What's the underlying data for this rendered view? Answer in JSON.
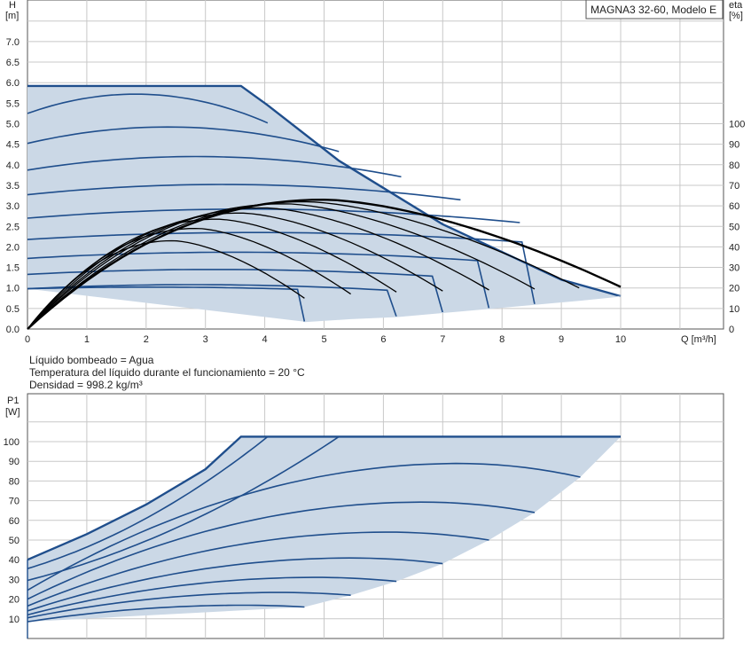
{
  "chart_title": "MAGNA3 32-60, Modelo E",
  "colors": {
    "curve": "#1f4e8c",
    "fill": "#cbd8e6",
    "eff": "#000000",
    "grid": "#c8c8c8"
  },
  "top": {
    "ylabel_line1": "H",
    "ylabel_line2": "[m]",
    "y2label_line1": "eta",
    "y2label_line2": "[%]",
    "xlabel": "Q [m³/h]",
    "x_ticks": [
      "0",
      "1",
      "2",
      "3",
      "4",
      "5",
      "6",
      "7",
      "8",
      "9",
      "10"
    ],
    "y_ticks": [
      "0.0",
      "0.5",
      "1.0",
      "1.5",
      "2.0",
      "2.5",
      "3.0",
      "3.5",
      "4.0",
      "4.5",
      "5.0",
      "5.5",
      "6.0",
      "6.5",
      "7.0"
    ],
    "y2_ticks": [
      "0",
      "10",
      "20",
      "30",
      "40",
      "50",
      "60",
      "70",
      "80",
      "90",
      "100"
    ]
  },
  "notes": {
    "line1": "Líquido bombeado = Agua",
    "line2": "Temperatura del líquido durante el funcionamiento = 20 °C",
    "line3": "Densidad = 998.2 kg/m³"
  },
  "bottom": {
    "ylabel_line1": "P1",
    "ylabel_line2": "[W]",
    "y_ticks": [
      "10",
      "20",
      "30",
      "40",
      "50",
      "60",
      "70",
      "80",
      "90",
      "100"
    ]
  },
  "chart_data": [
    {
      "type": "line",
      "title": "MAGNA3 32-60, Modelo E",
      "xlabel": "Q [m³/h]",
      "ylabel": "H [m]",
      "y2label": "eta [%]",
      "xlim": [
        0,
        11
      ],
      "ylim": [
        0,
        7.5
      ],
      "y2lim": [
        0,
        110
      ],
      "grid": true,
      "envelope": {
        "x": [
          0,
          3.6,
          4.05,
          5.25,
          7.0,
          9.0,
          10.0
        ],
        "y": [
          5.92,
          5.92,
          5.45,
          4.1,
          2.55,
          1.2,
          0.8
        ]
      },
      "lower_boundary": {
        "x": [
          4.67,
          5.45,
          6.22,
          7.0,
          7.78,
          8.55,
          9.32,
          10.0
        ],
        "y": [
          0.18,
          0.25,
          0.3,
          0.4,
          0.5,
          0.6,
          0.7,
          0.8
        ]
      },
      "h_series": [
        {
          "h0": 5.25,
          "pk": 5.72,
          "xmax": 4.05
        },
        {
          "h0": 4.52,
          "pk": 4.92,
          "xmax": 5.25
        },
        {
          "h0": 3.87,
          "pk": 4.2,
          "xmax": 6.3
        },
        {
          "h0": 3.27,
          "pk": 3.52,
          "xmax": 7.3
        },
        {
          "h0": 2.7,
          "pk": 2.92,
          "xmax": 8.3
        },
        {
          "h0": 2.18,
          "pk": 2.35,
          "xmax": 8.55
        },
        {
          "h0": 1.72,
          "pk": 1.87,
          "xmax": 7.78
        },
        {
          "h0": 1.33,
          "pk": 1.45,
          "xmax": 7.0
        },
        {
          "h0": 0.98,
          "pk": 1.08,
          "xmax": 6.22
        },
        {
          "h0": 0.98,
          "pk": 1.02,
          "xmax": 4.67
        }
      ],
      "eff_series": [
        {
          "peak": 63,
          "qpeak": 5.0,
          "qend": 10.0,
          "eend": 20.5
        },
        {
          "peak": 62,
          "qpeak": 4.7,
          "qend": 9.3,
          "eend": 20
        },
        {
          "peak": 61,
          "qpeak": 4.35,
          "qend": 8.55,
          "eend": 19.5
        },
        {
          "peak": 59,
          "qpeak": 4.0,
          "qend": 7.78,
          "eend": 19
        },
        {
          "peak": 56.5,
          "qpeak": 3.6,
          "qend": 7.0,
          "eend": 18.5
        },
        {
          "peak": 53.5,
          "qpeak": 3.2,
          "qend": 6.22,
          "eend": 18
        },
        {
          "peak": 49,
          "qpeak": 2.85,
          "qend": 5.45,
          "eend": 17
        },
        {
          "peak": 43,
          "qpeak": 2.45,
          "qend": 4.67,
          "eend": 15
        }
      ]
    },
    {
      "type": "line",
      "ylabel": "P1 [W]",
      "xlim": [
        0,
        11
      ],
      "ylim": [
        0,
        110
      ],
      "grid": true,
      "envelope_top": {
        "x": [
          0,
          1,
          2,
          3,
          3.6,
          10.0
        ],
        "y": [
          40,
          53,
          68,
          86,
          102.5,
          102.5
        ]
      },
      "lower_boundary": {
        "x": [
          4.67,
          5.45,
          6.22,
          7.0,
          7.78,
          8.55,
          9.32,
          10.0
        ],
        "y": [
          16,
          22,
          29,
          38,
          50,
          64,
          82,
          102.5
        ]
      },
      "p_series": [
        {
          "p0": 35.5,
          "xmax": 4.05,
          "pend": 102.5
        },
        {
          "p0": 29.5,
          "xmax": 5.25,
          "pend": 102.5
        },
        {
          "p0": 24.5,
          "xmax": 9.32,
          "pend": 82
        },
        {
          "p0": 20,
          "xmax": 8.55,
          "pend": 64
        },
        {
          "p0": 16.5,
          "xmax": 7.78,
          "pend": 50
        },
        {
          "p0": 14,
          "xmax": 7.0,
          "pend": 38
        },
        {
          "p0": 12,
          "xmax": 6.22,
          "pend": 29
        },
        {
          "p0": 10.5,
          "xmax": 5.45,
          "pend": 22
        },
        {
          "p0": 8.5,
          "xmax": 4.67,
          "pend": 16
        }
      ]
    }
  ]
}
